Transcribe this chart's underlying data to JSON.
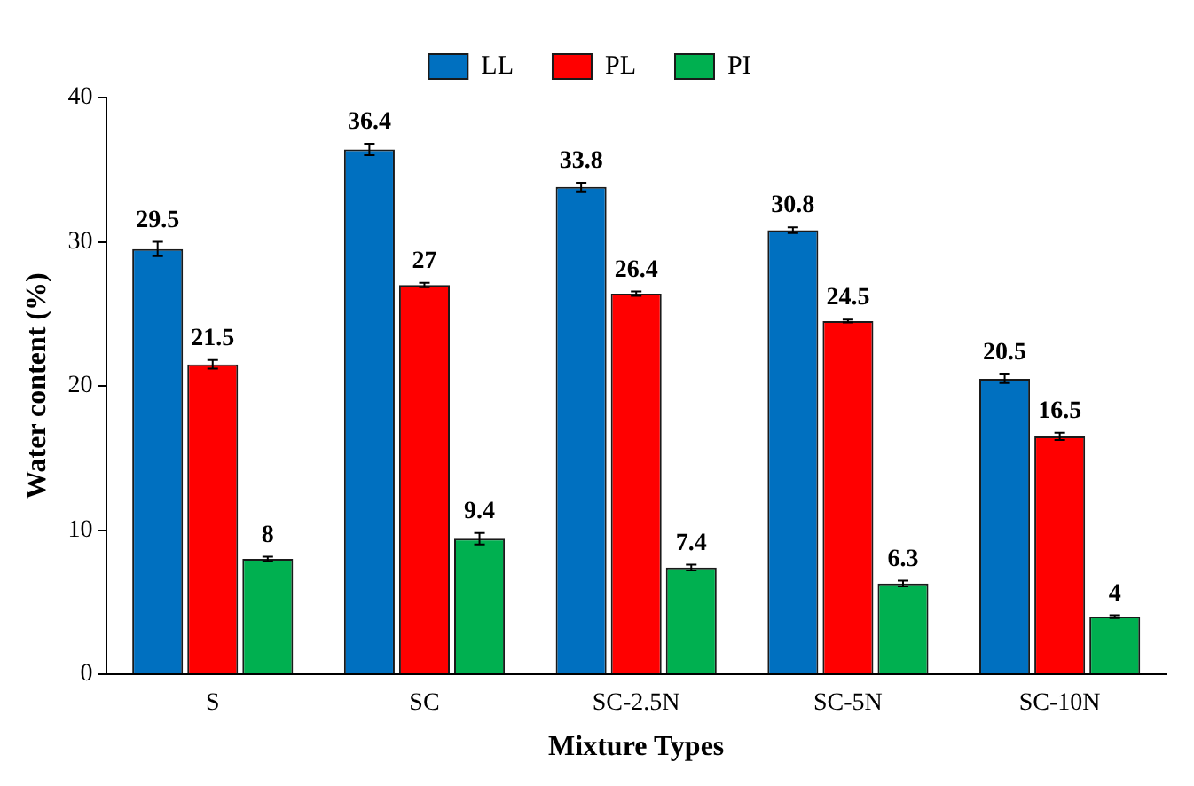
{
  "chart_data": {
    "type": "bar",
    "xlabel": "Mixture Types",
    "ylabel": "Water content (%)",
    "categories": [
      "S",
      "SC",
      "SC-2.5N",
      "SC-5N",
      "SC-10N"
    ],
    "series": [
      {
        "name": "LL",
        "color": "#0070c0",
        "values": [
          29.5,
          36.4,
          33.8,
          30.8,
          20.5
        ],
        "errors": [
          0.5,
          0.4,
          0.3,
          0.2,
          0.3
        ]
      },
      {
        "name": "PL",
        "color": "#ff0000",
        "values": [
          21.5,
          27,
          26.4,
          24.5,
          16.5
        ],
        "errors": [
          0.3,
          0.15,
          0.15,
          0.1,
          0.25
        ]
      },
      {
        "name": "PI",
        "color": "#00b050",
        "values": [
          8,
          9.4,
          7.4,
          6.3,
          4
        ],
        "errors": [
          0.15,
          0.4,
          0.2,
          0.2,
          0.1
        ]
      }
    ],
    "ylim": [
      0,
      40
    ],
    "yticks": [
      0,
      10,
      20,
      30,
      40
    ],
    "grid": false,
    "legend": "top",
    "data_labels": true
  }
}
